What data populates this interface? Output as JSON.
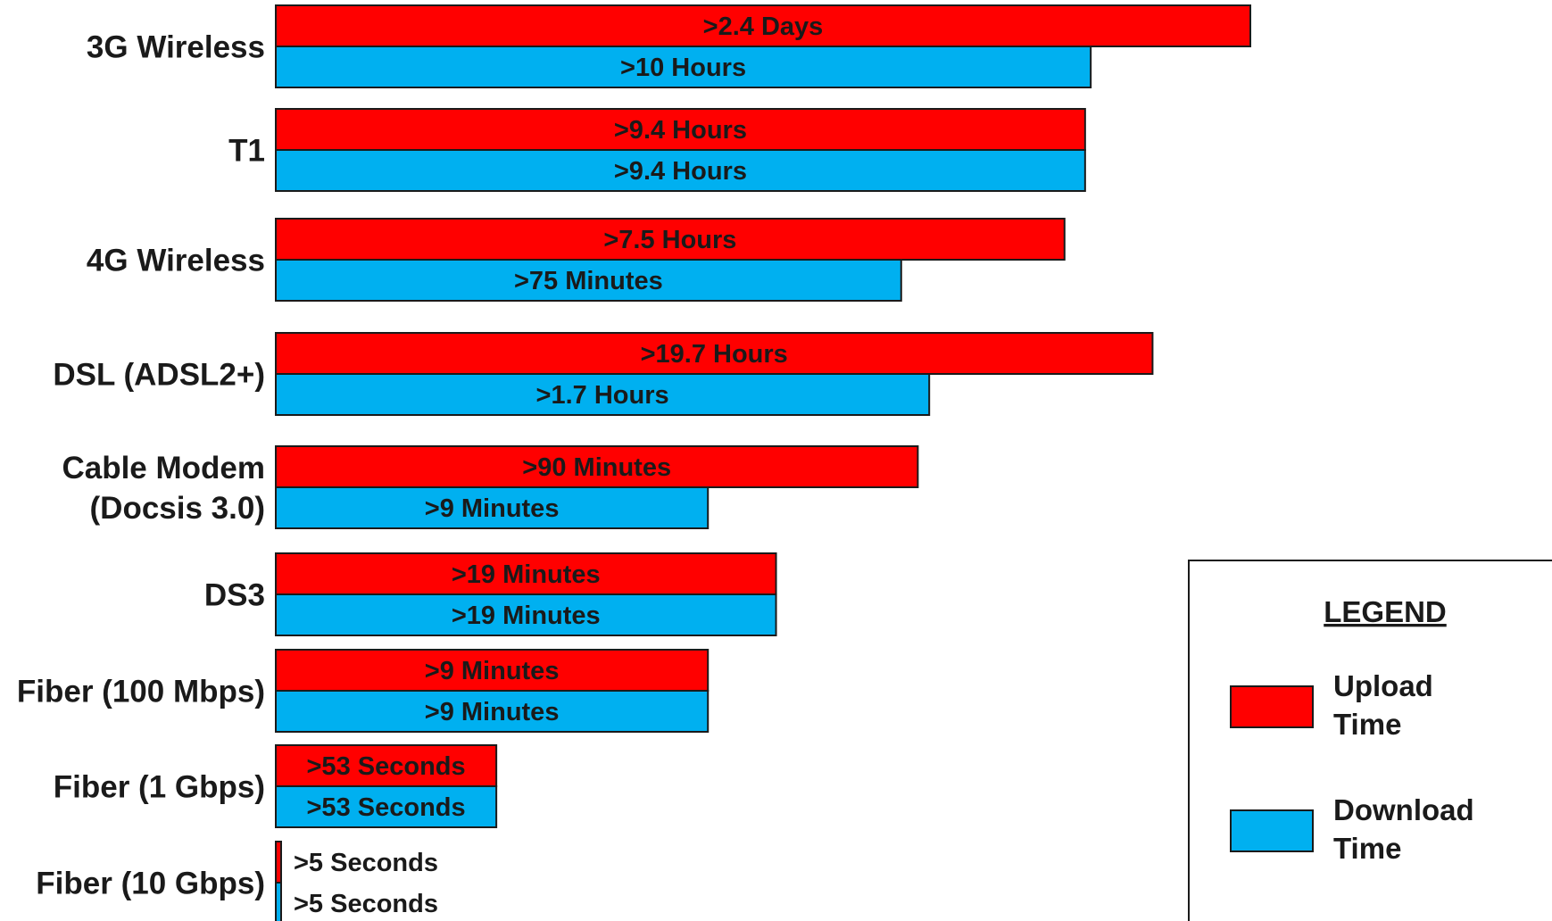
{
  "chart_data": {
    "type": "bar",
    "orientation": "horizontal",
    "scale": "log",
    "categories": [
      "3G Wireless",
      "T1",
      "4G Wireless",
      "DSL (ADSL2+)",
      "Cable Modem\n(Docsis 3.0)",
      "DS3",
      "Fiber (100 Mbps)",
      "Fiber (1 Gbps)",
      "Fiber (10 Gbps)"
    ],
    "series": [
      {
        "name": "Upload Time",
        "color": "#ff0000",
        "values_seconds": [
          207360,
          33840,
          27000,
          70920,
          5400,
          1140,
          540,
          53,
          5
        ],
        "labels": [
          ">2.4 Days",
          ">9.4 Hours",
          ">7.5 Hours",
          ">19.7 Hours",
          ">90 Minutes",
          ">19 Minutes",
          ">9 Minutes",
          ">53 Seconds",
          ">5 Seconds"
        ]
      },
      {
        "name": "Download Time",
        "color": "#00b0f0",
        "values_seconds": [
          36000,
          33840,
          4500,
          6120,
          540,
          1140,
          540,
          53,
          5
        ],
        "labels": [
          ">10 Hours",
          ">9.4 Hours",
          ">75 Minutes",
          ">1.7 Hours",
          ">9 Minutes",
          ">19 Minutes",
          ">9 Minutes",
          ">53 Seconds",
          ">5 Seconds"
        ]
      }
    ],
    "legend": {
      "title": "LEGEND",
      "position": "bottom-right",
      "items": [
        {
          "label": "Upload\nTime",
          "color": "#ff0000"
        },
        {
          "label": "Download\nTime",
          "color": "#00b0f0"
        }
      ]
    },
    "grid": false
  }
}
